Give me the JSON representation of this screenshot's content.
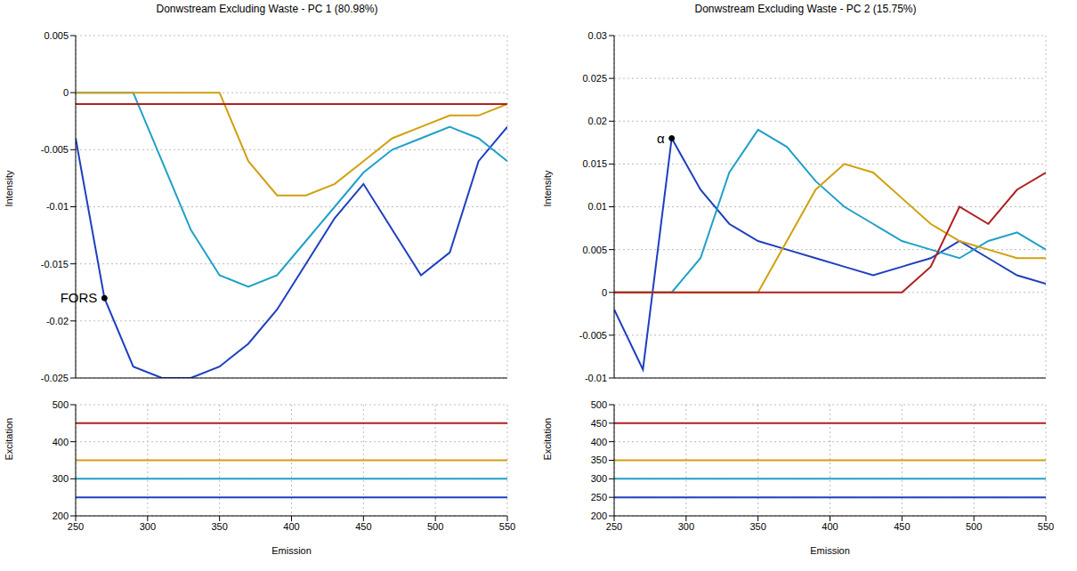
{
  "chart_data": [
    {
      "type": "line",
      "title": "Donwstream Excluding Waste - PC 1 (80.98%)",
      "xlabel": "Emission",
      "ylabel": "Intensity",
      "zlabel": "Excitation",
      "x": [
        250,
        270,
        290,
        310,
        330,
        350,
        370,
        390,
        410,
        430,
        450,
        470,
        490,
        510,
        530,
        550
      ],
      "xlim": [
        250,
        550
      ],
      "xticks": [
        250,
        300,
        350,
        400,
        450,
        500,
        550
      ],
      "ylim": [
        -0.025,
        0.005
      ],
      "yticks": [
        0.005,
        0,
        -0.005,
        -0.01,
        -0.015,
        -0.02,
        -0.025
      ],
      "zlim": [
        200,
        500
      ],
      "zticks": [
        200,
        300,
        400,
        500
      ],
      "grid": true,
      "series": [
        {
          "excitation": 250,
          "color": "#1f3fbf",
          "values": [
            -0.004,
            -0.018,
            -0.024,
            -0.025,
            -0.025,
            -0.024,
            -0.022,
            -0.019,
            -0.015,
            -0.011,
            -0.008,
            -0.012,
            -0.016,
            -0.014,
            -0.006,
            -0.003
          ]
        },
        {
          "excitation": 300,
          "color": "#1fa0c8",
          "values": [
            0,
            0,
            0,
            -0.006,
            -0.012,
            -0.016,
            -0.017,
            -0.016,
            -0.013,
            -0.01,
            -0.007,
            -0.005,
            -0.004,
            -0.003,
            -0.004,
            -0.006
          ]
        },
        {
          "excitation": 350,
          "color": "#d0a010",
          "values": [
            0,
            0,
            0,
            0,
            0,
            0,
            -0.006,
            -0.009,
            -0.009,
            -0.008,
            -0.006,
            -0.004,
            -0.003,
            -0.002,
            -0.002,
            -0.001
          ]
        },
        {
          "excitation": 450,
          "color": "#b02020",
          "values": [
            -0.001,
            -0.001,
            -0.001,
            -0.001,
            -0.001,
            -0.001,
            -0.001,
            -0.001,
            -0.001,
            -0.001,
            -0.001,
            -0.001,
            -0.001,
            -0.001,
            -0.001,
            -0.001
          ]
        }
      ],
      "annotations": [
        {
          "text": "FORS",
          "x": 270,
          "y": -0.018
        }
      ]
    },
    {
      "type": "line",
      "title": "Donwstream Excluding Waste - PC 2 (15.75%)",
      "xlabel": "Emission",
      "ylabel": "Intensity",
      "zlabel": "Excitation",
      "x": [
        250,
        270,
        290,
        310,
        330,
        350,
        370,
        390,
        410,
        430,
        450,
        470,
        490,
        510,
        530,
        550
      ],
      "xlim": [
        250,
        550
      ],
      "xticks": [
        250,
        300,
        350,
        400,
        450,
        500,
        550
      ],
      "ylim": [
        -0.01,
        0.03
      ],
      "yticks": [
        0.03,
        0.025,
        0.02,
        0.015,
        0.01,
        0.005,
        0,
        -0.005,
        -0.01
      ],
      "zlim": [
        200,
        500
      ],
      "zticks": [
        200,
        250,
        300,
        350,
        400,
        450,
        500
      ],
      "grid": true,
      "series": [
        {
          "excitation": 250,
          "color": "#1f3fbf",
          "values": [
            -0.002,
            -0.009,
            0.018,
            0.012,
            0.008,
            0.006,
            0.005,
            0.004,
            0.003,
            0.002,
            0.003,
            0.004,
            0.006,
            0.004,
            0.002,
            0.001
          ]
        },
        {
          "excitation": 300,
          "color": "#1fa0c8",
          "values": [
            0,
            0,
            0,
            0.004,
            0.014,
            0.019,
            0.017,
            0.013,
            0.01,
            0.008,
            0.006,
            0.005,
            0.004,
            0.006,
            0.007,
            0.005
          ]
        },
        {
          "excitation": 350,
          "color": "#d0a010",
          "values": [
            0,
            0,
            0,
            0,
            0,
            0,
            0.006,
            0.012,
            0.015,
            0.014,
            0.011,
            0.008,
            0.006,
            0.005,
            0.004,
            0.004
          ]
        },
        {
          "excitation": 450,
          "color": "#b02020",
          "values": [
            0,
            0,
            0,
            0,
            0,
            0,
            0,
            0,
            0,
            0,
            0,
            0.003,
            0.01,
            0.008,
            0.012,
            0.014
          ]
        }
      ],
      "annotations": [
        {
          "text": "α",
          "x": 290,
          "y": 0.018
        }
      ]
    }
  ]
}
